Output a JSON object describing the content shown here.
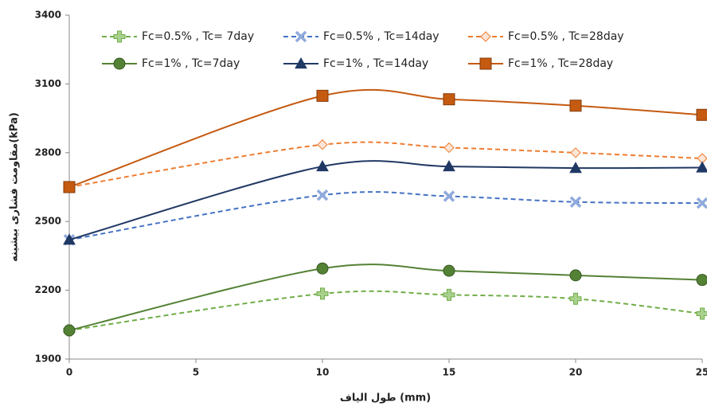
{
  "chart_data": {
    "type": "line",
    "x_label": "طول الیاف (mm)",
    "y_label": "مقاومت فشاری بیشینه(kPa)",
    "x": [
      0,
      10,
      15,
      20,
      25
    ],
    "xlim": [
      0,
      25
    ],
    "xticks": [
      0,
      5,
      10,
      15,
      20,
      25
    ],
    "ylim": [
      1900,
      3400
    ],
    "yticks": [
      1900,
      2200,
      2500,
      2800,
      3100,
      3400
    ],
    "smooth": true,
    "series": [
      {
        "name": "Fc=0.5% , Tc= 7day",
        "color": "#70ad47",
        "dashed": true,
        "marker": "plus",
        "values": [
          2025,
          2185,
          2180,
          2163,
          2098
        ]
      },
      {
        "name": "Fc=0.5% , Tc=14day",
        "color": "#4472c4",
        "dashed": true,
        "marker": "x",
        "values": [
          2420,
          2615,
          2610,
          2585,
          2580
        ]
      },
      {
        "name": "Fc=0.5% , Tc=28day",
        "color": "#ed7d31",
        "dashed": true,
        "marker": "diamond",
        "values": [
          2650,
          2835,
          2822,
          2800,
          2775
        ]
      },
      {
        "name": "Fc=1% , Tc=7day",
        "color": "#548235",
        "dashed": false,
        "marker": "circle",
        "values": [
          2025,
          2295,
          2285,
          2265,
          2245
        ]
      },
      {
        "name": "Fc=1% , Tc=14day",
        "color": "#203864",
        "dashed": false,
        "marker": "triangle",
        "values": [
          2420,
          2740,
          2740,
          2733,
          2735
        ]
      },
      {
        "name": "Fc=1% , Tc=28day",
        "color": "#c55a11",
        "dashed": false,
        "marker": "square",
        "values": [
          2650,
          3048,
          3033,
          3005,
          2965
        ]
      }
    ]
  }
}
